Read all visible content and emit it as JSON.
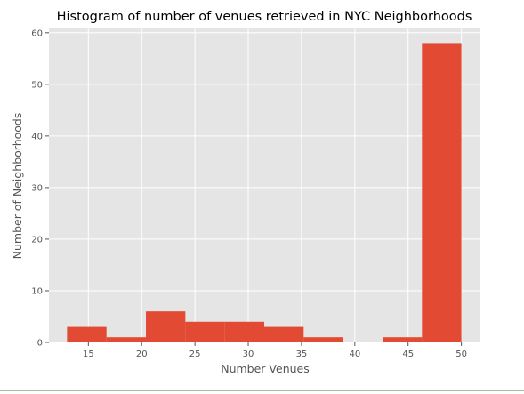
{
  "chart_data": {
    "type": "bar",
    "title": "Histogram of number of venues retrieved in NYC Neighborhoods",
    "xlabel": "Number Venues",
    "ylabel": "Number of Neighborhoods",
    "xlim": [
      11.3,
      51.7
    ],
    "ylim": [
      0,
      61
    ],
    "xticks": [
      15,
      20,
      25,
      30,
      35,
      40,
      45,
      50
    ],
    "yticks": [
      0,
      10,
      20,
      30,
      40,
      50,
      60
    ],
    "grid": true,
    "bins": [
      {
        "x0": 13.0,
        "x1": 16.7,
        "count": 3
      },
      {
        "x0": 16.7,
        "x1": 20.4,
        "count": 1
      },
      {
        "x0": 20.4,
        "x1": 24.1,
        "count": 6
      },
      {
        "x0": 24.1,
        "x1": 27.8,
        "count": 4
      },
      {
        "x0": 27.8,
        "x1": 31.5,
        "count": 4
      },
      {
        "x0": 31.5,
        "x1": 35.2,
        "count": 3
      },
      {
        "x0": 35.2,
        "x1": 38.9,
        "count": 1
      },
      {
        "x0": 38.9,
        "x1": 42.6,
        "count": 0
      },
      {
        "x0": 42.6,
        "x1": 46.3,
        "count": 1
      },
      {
        "x0": 46.3,
        "x1": 50.0,
        "count": 58
      }
    ],
    "colors": {
      "bar": "#e24a33",
      "panel": "#e5e5e5",
      "grid": "#ffffff",
      "tick": "#555555",
      "text": "#000000"
    }
  }
}
